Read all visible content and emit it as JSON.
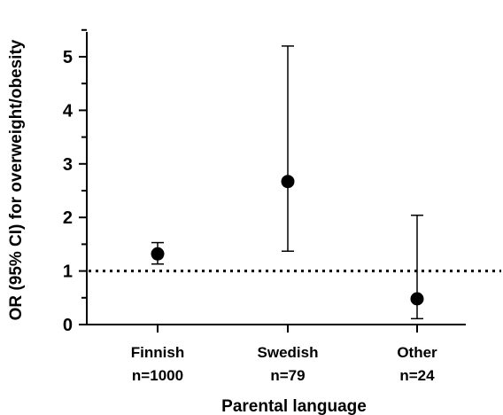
{
  "chart_data": {
    "type": "scatter",
    "subtype": "point-estimate-with-95ci",
    "title": "",
    "xlabel": "Parental language",
    "ylabel": "OR (95% CI) for overweight/obesity",
    "ylim": [
      0,
      5.5
    ],
    "yticks": [
      "0",
      "1",
      "2",
      "3",
      "4",
      "5"
    ],
    "categories": [
      {
        "label": "Finnish",
        "n": "n=1000",
        "or": 1.32,
        "ci_low": 1.13,
        "ci_high": 1.53
      },
      {
        "label": "Swedish",
        "n": "n=79",
        "or": 2.67,
        "ci_low": 1.37,
        "ci_high": 5.2
      },
      {
        "label": "Other",
        "n": "n=24",
        "or": 0.48,
        "ci_low": 0.11,
        "ci_high": 2.04
      }
    ],
    "reference_line": {
      "y": 1,
      "style": "dotted"
    },
    "grid": false,
    "legend": "none",
    "colors": {
      "marker": "#000000",
      "axis": "#000000"
    }
  }
}
